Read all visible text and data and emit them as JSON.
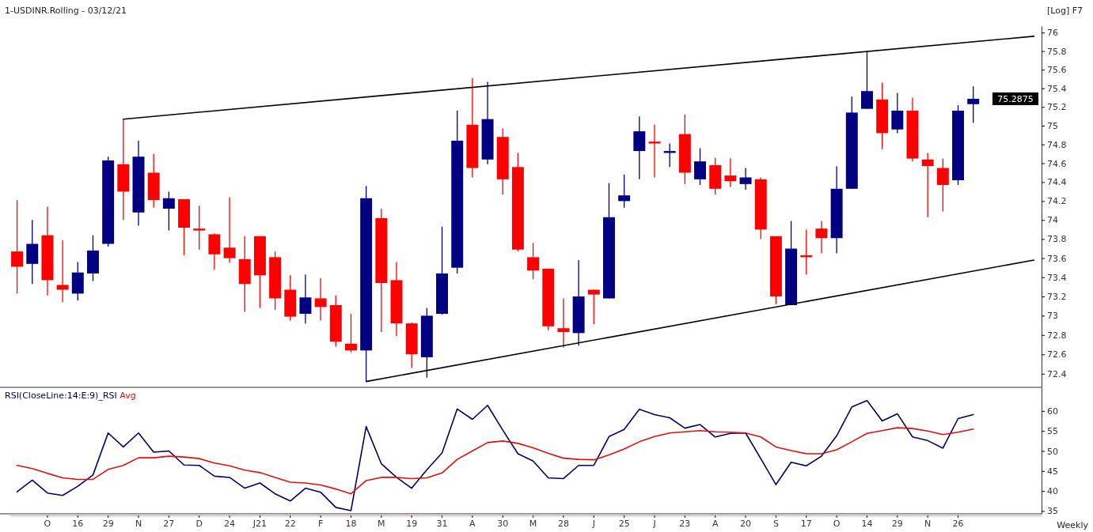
{
  "chart_data": [
    {
      "type": "candlestick",
      "title": "1-USDINR.Rolling - 03/12/21",
      "annotations": [
        "[Log] F7",
        "75.2875"
      ],
      "log": true,
      "tick_labels": "y",
      "ylim": [
        72.26,
        76.07
      ],
      "yticks": [
        72.4,
        72.6,
        72.8,
        73,
        73.2,
        73.4,
        73.6,
        73.8,
        74,
        74.2,
        74.4,
        74.6,
        74.8,
        75,
        75.2,
        75.4,
        75.6,
        75.8,
        76
      ],
      "categories": [
        null,
        null,
        null,
        null,
        null,
        null,
        null,
        null,
        null,
        null,
        null,
        null,
        null,
        null,
        null,
        null,
        null,
        null,
        null,
        null,
        null,
        null,
        null,
        null,
        null,
        null,
        null,
        null,
        null,
        null,
        null,
        null,
        null,
        null,
        null,
        null,
        null,
        null,
        null,
        null,
        null,
        null,
        null,
        null,
        null,
        null,
        null,
        null,
        null,
        null,
        null,
        null,
        null,
        null,
        null,
        null,
        null,
        null,
        null,
        null,
        null,
        null,
        null,
        null,
        null,
        null,
        null,
        null
      ],
      "ohlc": [
        [
          73.67,
          74.21,
          73.23,
          73.51
        ],
        [
          73.54,
          74.0,
          73.33,
          73.75
        ],
        [
          73.84,
          74.14,
          73.21,
          73.37
        ],
        [
          73.32,
          73.79,
          73.14,
          73.27
        ],
        [
          73.23,
          73.56,
          73.16,
          73.45
        ],
        [
          73.44,
          73.84,
          73.36,
          73.68
        ],
        [
          73.75,
          74.67,
          73.72,
          74.63
        ],
        [
          74.59,
          75.07,
          74.0,
          74.3
        ],
        [
          74.08,
          74.84,
          73.94,
          74.67
        ],
        [
          74.5,
          74.7,
          74.13,
          74.21
        ],
        [
          74.12,
          74.3,
          73.89,
          74.23
        ],
        [
          74.22,
          74.22,
          73.63,
          73.92
        ],
        [
          73.91,
          74.15,
          73.69,
          73.89
        ],
        [
          73.85,
          73.86,
          73.48,
          73.64
        ],
        [
          73.71,
          74.24,
          73.55,
          73.6
        ],
        [
          73.59,
          73.83,
          73.04,
          73.33
        ],
        [
          73.83,
          73.83,
          73.08,
          73.42
        ],
        [
          73.61,
          73.67,
          73.06,
          73.18
        ],
        [
          73.27,
          73.42,
          72.95,
          72.99
        ],
        [
          73.02,
          73.43,
          72.92,
          73.19
        ],
        [
          73.18,
          73.39,
          72.95,
          73.09
        ],
        [
          73.11,
          73.21,
          72.68,
          72.73
        ],
        [
          72.71,
          73.02,
          72.62,
          72.64
        ],
        [
          72.64,
          74.36,
          72.32,
          74.23
        ],
        [
          74.02,
          74.12,
          72.83,
          73.34
        ],
        [
          73.37,
          73.56,
          72.79,
          72.92
        ],
        [
          72.92,
          72.93,
          72.46,
          72.6
        ],
        [
          72.57,
          73.08,
          72.36,
          73.0
        ],
        [
          73.02,
          73.93,
          73.01,
          73.44
        ],
        [
          73.5,
          75.16,
          73.44,
          74.84
        ],
        [
          75.01,
          75.51,
          74.45,
          74.55
        ],
        [
          74.64,
          75.47,
          74.59,
          75.07
        ],
        [
          74.88,
          74.97,
          74.27,
          74.43
        ],
        [
          74.56,
          74.71,
          73.67,
          73.69
        ],
        [
          73.61,
          73.76,
          73.38,
          73.47
        ],
        [
          73.49,
          73.49,
          72.85,
          72.89
        ],
        [
          72.87,
          73.18,
          72.67,
          72.83
        ],
        [
          72.82,
          73.58,
          72.69,
          73.2
        ],
        [
          73.27,
          73.27,
          72.91,
          73.22
        ],
        [
          73.18,
          74.39,
          73.18,
          74.03
        ],
        [
          74.2,
          74.48,
          74.13,
          74.26
        ],
        [
          74.73,
          75.1,
          74.43,
          74.94
        ],
        [
          74.83,
          75.01,
          74.45,
          74.81
        ],
        [
          74.71,
          74.81,
          74.56,
          74.73
        ],
        [
          74.91,
          75.12,
          74.38,
          74.5
        ],
        [
          74.43,
          74.76,
          74.37,
          74.62
        ],
        [
          74.58,
          74.66,
          74.27,
          74.33
        ],
        [
          74.47,
          74.65,
          74.35,
          74.41
        ],
        [
          74.38,
          74.55,
          74.32,
          74.45
        ],
        [
          74.43,
          74.45,
          73.8,
          73.9
        ],
        [
          73.83,
          73.83,
          73.12,
          73.2
        ],
        [
          73.11,
          73.99,
          73.11,
          73.7
        ],
        [
          73.63,
          73.9,
          73.43,
          73.61
        ],
        [
          73.91,
          73.99,
          73.65,
          73.81
        ],
        [
          73.81,
          74.57,
          73.65,
          74.33
        ],
        [
          74.33,
          75.31,
          74.33,
          75.14
        ],
        [
          75.18,
          75.79,
          75.18,
          75.37
        ],
        [
          75.28,
          75.46,
          74.75,
          74.92
        ],
        [
          74.96,
          75.35,
          74.92,
          75.16
        ],
        [
          75.16,
          75.3,
          74.62,
          74.65
        ],
        [
          74.64,
          74.71,
          74.03,
          74.57
        ],
        [
          74.55,
          74.65,
          74.09,
          74.37
        ],
        [
          74.42,
          75.22,
          74.37,
          75.16
        ],
        [
          75.23,
          75.42,
          75.03,
          75.2875
        ],
        null,
        null,
        null,
        null
      ],
      "colors": [
        "#ff0000",
        "#000080",
        "#ff0000",
        "#ff0000",
        "#000080",
        "#000080",
        "#000080",
        "#ff0000",
        "#000080",
        "#ff0000",
        "#000080",
        "#ff0000",
        "#ff0000",
        "#ff0000",
        "#ff0000",
        "#ff0000",
        "#ff0000",
        "#ff0000",
        "#ff0000",
        "#000080",
        "#ff0000",
        "#ff0000",
        "#ff0000",
        "#000080",
        "#ff0000",
        "#ff0000",
        "#ff0000",
        "#000080",
        "#000080",
        "#000080",
        "#ff0000",
        "#000080",
        "#ff0000",
        "#ff0000",
        "#ff0000",
        "#ff0000",
        "#ff0000",
        "#000080",
        "#ff0000",
        "#000080",
        "#000080",
        "#000080",
        "#ff0000",
        "#000080",
        "#ff0000",
        "#000080",
        "#ff0000",
        "#ff0000",
        "#000080",
        "#ff0000",
        "#ff0000",
        "#000080",
        "#ff0000",
        "#ff0000",
        "#000080",
        "#000080",
        "#000080",
        "#ff0000",
        "#000080",
        "#ff0000",
        "#ff0000",
        "#ff0000",
        "#000080",
        "#000080",
        null,
        null,
        null,
        null
      ],
      "series": [
        {
          "type": "line",
          "color": "#000000",
          "values": [
            null,
            null,
            null,
            null,
            null,
            null,
            null,
            75.07,
            null,
            null,
            null,
            null,
            null,
            null,
            null,
            null,
            null,
            null,
            null,
            null,
            null,
            null,
            null,
            null,
            null,
            null,
            null,
            null,
            null,
            null,
            null,
            null,
            null,
            null,
            null,
            null,
            null,
            null,
            null,
            null,
            null,
            null,
            null,
            null,
            null,
            null,
            null,
            null,
            null,
            null,
            null,
            null,
            null,
            null,
            null,
            null,
            null,
            null,
            null,
            null,
            null,
            null,
            null,
            null,
            null,
            null,
            null,
            75.96
          ]
        },
        {
          "type": "line",
          "color": "#000000",
          "values": [
            null,
            null,
            null,
            null,
            null,
            null,
            null,
            null,
            null,
            null,
            null,
            null,
            null,
            null,
            null,
            null,
            null,
            null,
            null,
            null,
            null,
            null,
            null,
            72.32,
            null,
            null,
            null,
            null,
            null,
            null,
            null,
            null,
            null,
            null,
            null,
            null,
            null,
            null,
            null,
            null,
            null,
            null,
            null,
            null,
            null,
            null,
            null,
            null,
            null,
            null,
            null,
            null,
            null,
            null,
            null,
            null,
            null,
            null,
            null,
            null,
            null,
            null,
            null,
            null,
            null,
            null,
            null,
            73.58
          ]
        }
      ]
    },
    {
      "type": "line",
      "xlabel": "Weekly",
      "legend": "top left",
      "ylim": [
        34.3,
        65.9
      ],
      "yticks": [
        35,
        40,
        45,
        50,
        55,
        60
      ],
      "categories": [
        null,
        null,
        "O",
        null,
        "16",
        null,
        "29",
        null,
        "N",
        null,
        "27",
        null,
        "D",
        null,
        "24",
        null,
        "J21",
        null,
        "22",
        null,
        "F",
        null,
        "18",
        null,
        "M",
        null,
        "19",
        null,
        "31",
        null,
        "A",
        null,
        "30",
        null,
        "M",
        null,
        "28",
        null,
        "J",
        null,
        "25",
        null,
        "J",
        null,
        "23",
        null,
        "A",
        null,
        "20",
        null,
        "S",
        null,
        "17",
        null,
        "O",
        null,
        "14",
        null,
        "29",
        null,
        "N",
        null,
        "26",
        null,
        null,
        null,
        null,
        null
      ],
      "series": [
        {
          "name": "RSI(CloseLine:14:E:9)_RSI",
          "color": "#000060",
          "values": [
            39.8,
            42.7,
            39.5,
            38.9,
            41.2,
            44.0,
            54.5,
            51.0,
            54.5,
            49.7,
            50.0,
            46.5,
            46.4,
            43.7,
            43.4,
            40.7,
            42.0,
            39.3,
            37.5,
            40.7,
            39.7,
            35.9,
            35.1,
            56.1,
            46.8,
            43.4,
            40.7,
            45.3,
            49.5,
            60.5,
            57.9,
            61.4,
            55.2,
            49.3,
            47.5,
            43.3,
            43.1,
            46.4,
            46.4,
            53.6,
            55.4,
            60.4,
            59.1,
            58.3,
            55.7,
            56.6,
            53.5,
            54.4,
            54.5,
            48.1,
            41.6,
            47.2,
            46.3,
            48.7,
            53.8,
            61.0,
            62.6,
            57.5,
            59.3,
            53.5,
            52.6,
            50.7,
            58.1,
            59.1,
            null,
            null,
            null,
            null
          ]
        },
        {
          "name": "Avg",
          "color": "#dd1111",
          "values": [
            46.4,
            45.6,
            44.4,
            43.3,
            42.9,
            42.9,
            45.4,
            46.4,
            48.3,
            48.3,
            48.7,
            48.5,
            48.1,
            47.0,
            46.3,
            45.2,
            44.6,
            43.4,
            42.2,
            42.0,
            41.5,
            40.5,
            39.3,
            42.6,
            43.4,
            43.4,
            43.1,
            43.3,
            44.5,
            47.9,
            50.0,
            52.1,
            52.5,
            51.9,
            50.8,
            49.4,
            48.2,
            47.9,
            47.8,
            49.0,
            50.5,
            52.3,
            53.6,
            54.5,
            54.8,
            55.1,
            54.8,
            54.7,
            54.5,
            53.5,
            51.0,
            50.1,
            49.3,
            49.3,
            50.3,
            52.3,
            54.4,
            55.1,
            55.8,
            55.6,
            55.0,
            54.1,
            54.7,
            55.5,
            null,
            null,
            null,
            null
          ]
        }
      ]
    }
  ]
}
